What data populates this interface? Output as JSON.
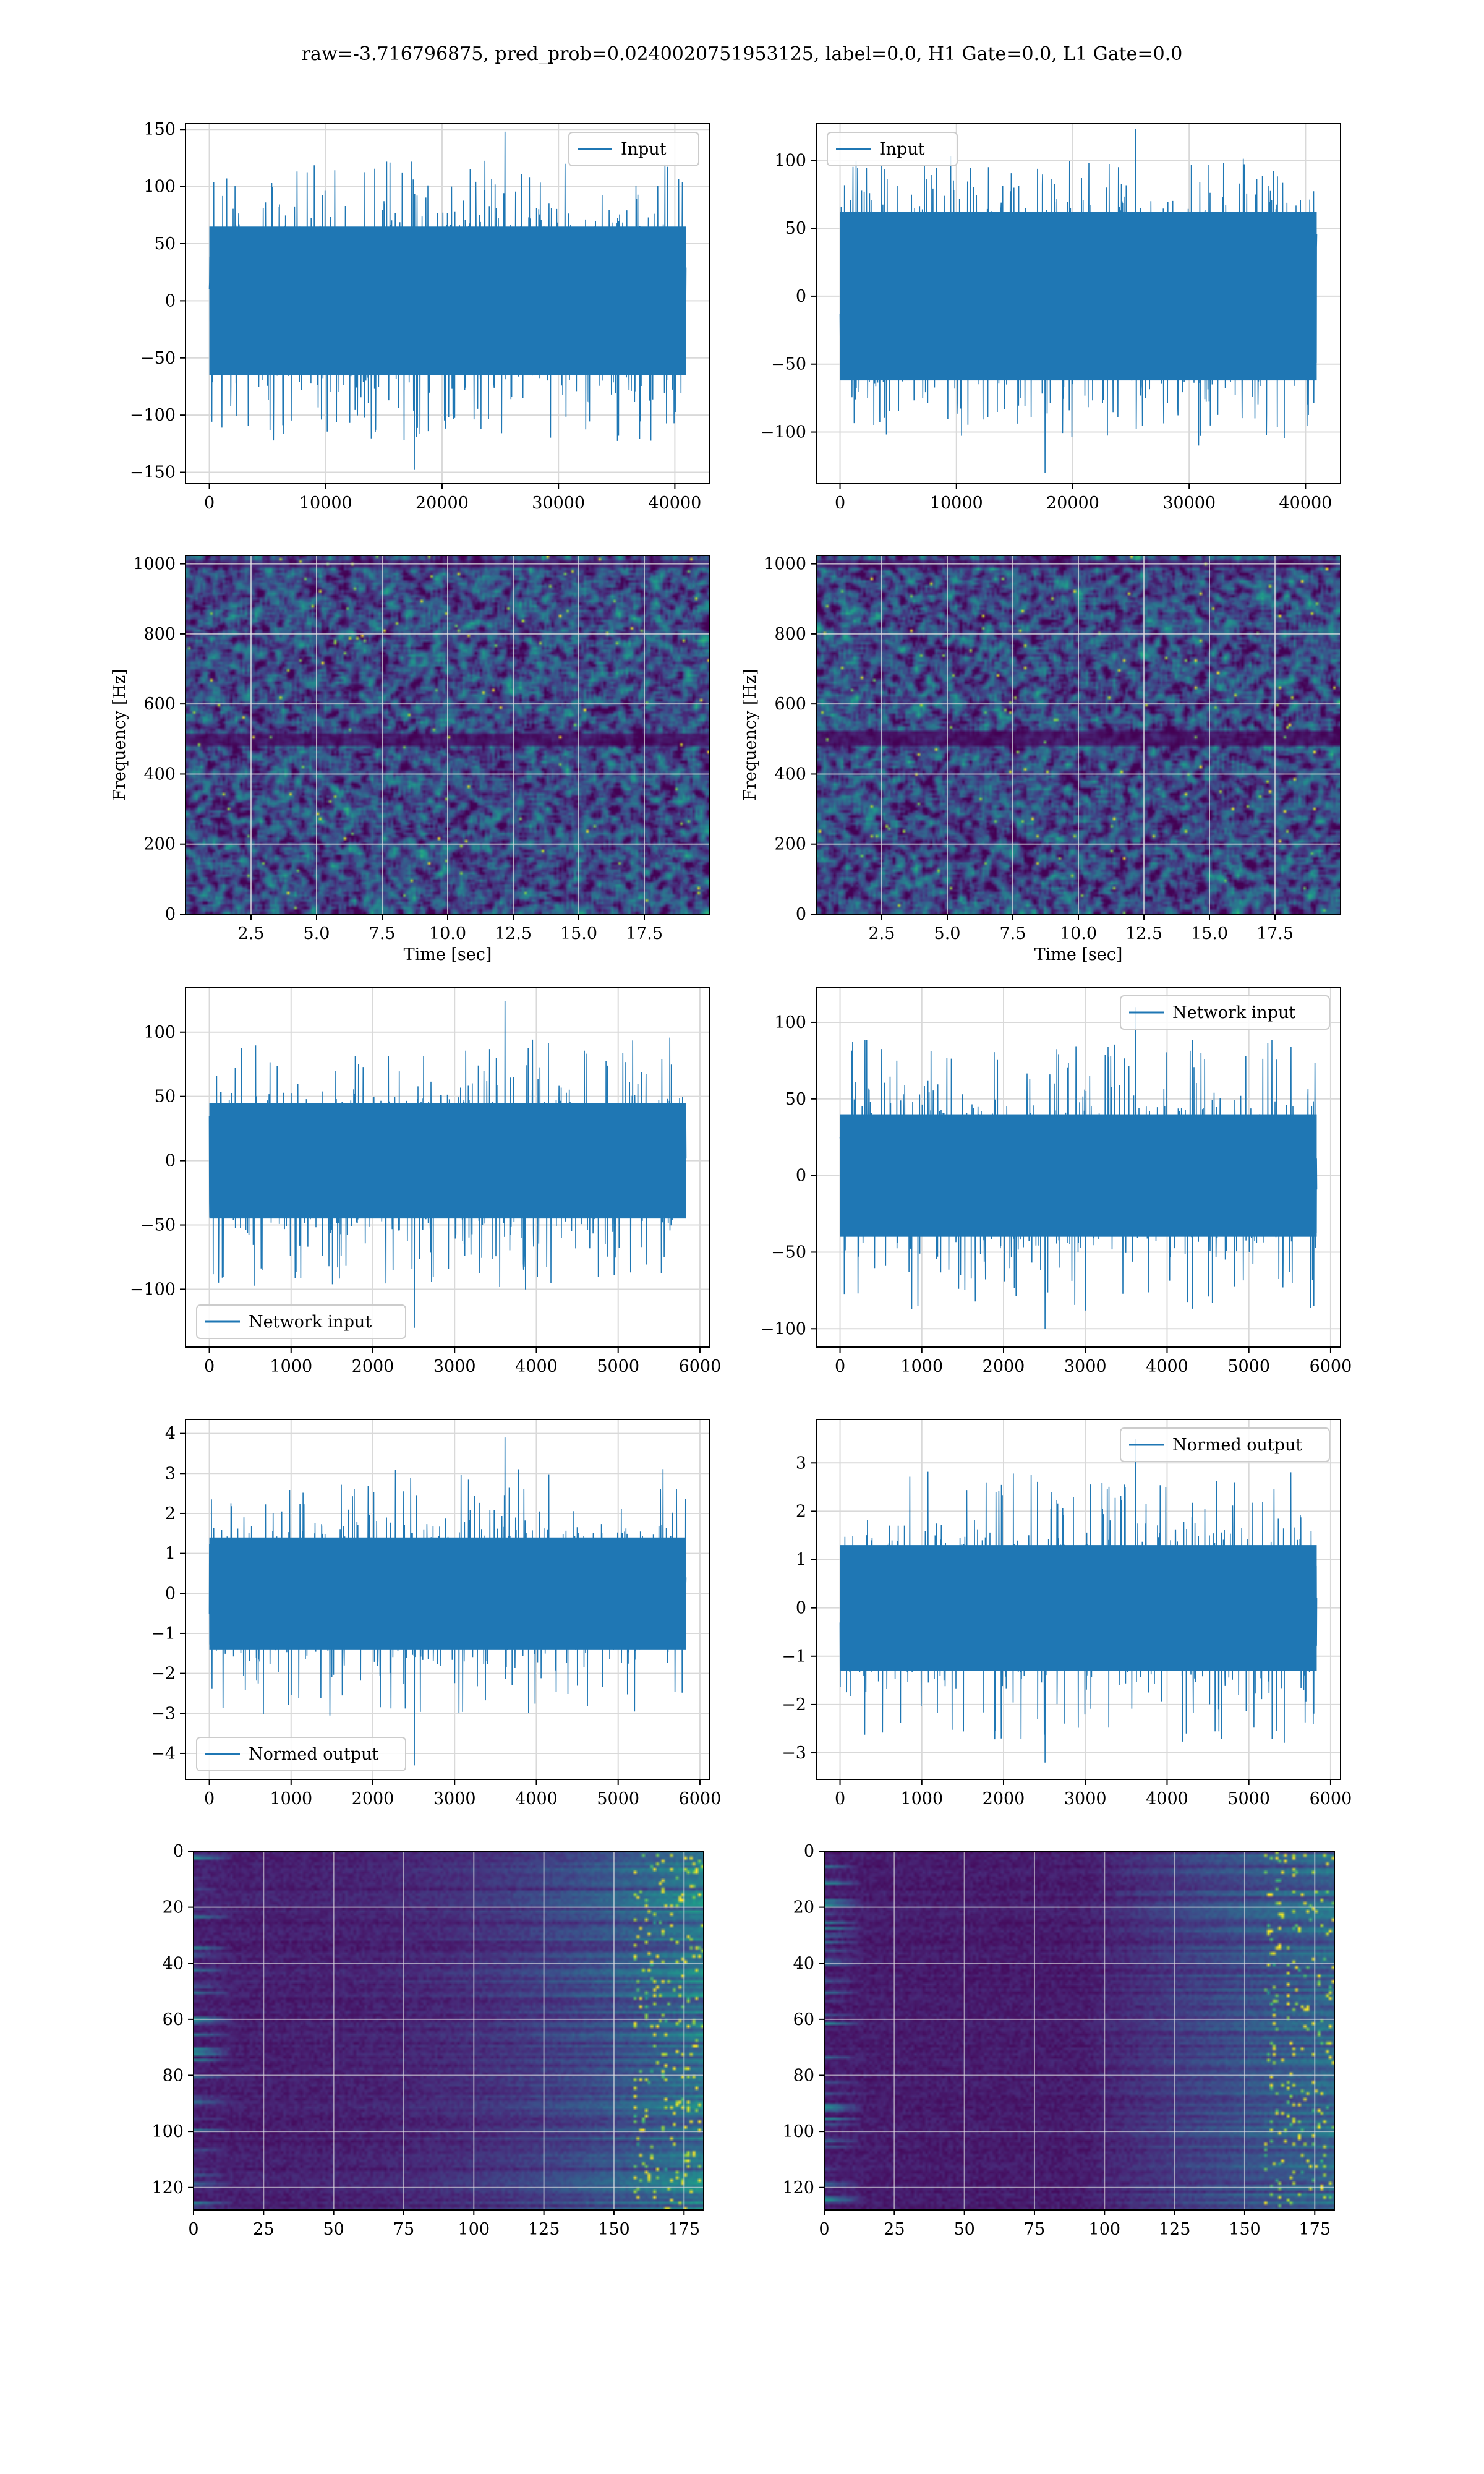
{
  "figure": {
    "title": "raw=-3.716796875, pred_prob=0.0240020751953125, label=0.0, H1 Gate=0.0, L1 Gate=0.0"
  },
  "colors": {
    "line": "#1f77b4",
    "grid": "#d9d9d9",
    "viridis_dark": "#440154",
    "viridis_mid": "#21908c",
    "viridis_bright": "#fde725"
  },
  "chart_data": [
    {
      "id": "input-h1",
      "type": "line",
      "legend": "Input",
      "legend_position": "upper right",
      "x_range": [
        0,
        40960
      ],
      "ylim": [
        -160,
        155
      ],
      "envelope": 65,
      "peak_up": 148,
      "peak_down": -148,
      "xticks": [
        0,
        10000,
        20000,
        30000,
        40000
      ],
      "yticks": [
        -150,
        -100,
        -50,
        0,
        50,
        100,
        150
      ],
      "grid": true
    },
    {
      "id": "input-l1",
      "type": "line",
      "legend": "Input",
      "legend_position": "upper left",
      "x_range": [
        0,
        40960
      ],
      "ylim": [
        -138,
        127
      ],
      "envelope": 62,
      "peak_up": 123,
      "peak_down": -130,
      "xticks": [
        0,
        10000,
        20000,
        30000,
        40000
      ],
      "yticks": [
        -100,
        -50,
        0,
        50,
        100
      ],
      "grid": true
    },
    {
      "id": "spec-h1",
      "type": "heatmap",
      "colormap": "viridis",
      "xlim": [
        0,
        20
      ],
      "ylim": [
        0,
        1024
      ],
      "xlabel": "Time [sec]",
      "ylabel": "Frequency [Hz]",
      "xticks": [
        2.5,
        5.0,
        7.5,
        10.0,
        12.5,
        15.0,
        17.5
      ],
      "yticks": [
        0,
        200,
        400,
        600,
        800,
        1000
      ],
      "dark_band_hz": [
        480,
        515
      ],
      "grid": true
    },
    {
      "id": "spec-l1",
      "type": "heatmap",
      "colormap": "viridis",
      "xlim": [
        0,
        20
      ],
      "ylim": [
        0,
        1024
      ],
      "xlabel": "Time [sec]",
      "ylabel": "Frequency [Hz]",
      "xticks": [
        2.5,
        5.0,
        7.5,
        10.0,
        12.5,
        15.0,
        17.5
      ],
      "yticks": [
        0,
        200,
        400,
        600,
        800,
        1000
      ],
      "dark_band_hz": [
        480,
        520
      ],
      "grid": true
    },
    {
      "id": "network-h1",
      "type": "line",
      "legend": "Network input",
      "legend_position": "lower left",
      "x_range": [
        0,
        5830
      ],
      "ylim": [
        -145,
        135
      ],
      "envelope": 45,
      "peak_up": 124,
      "peak_down": -130,
      "xticks": [
        0,
        1000,
        2000,
        3000,
        4000,
        5000,
        6000
      ],
      "yticks": [
        -100,
        -50,
        0,
        50,
        100
      ],
      "grid": true
    },
    {
      "id": "network-l1",
      "type": "line",
      "legend": "Network input",
      "legend_position": "upper right",
      "x_range": [
        0,
        5830
      ],
      "ylim": [
        -112,
        123
      ],
      "envelope": 40,
      "peak_up": 110,
      "peak_down": -100,
      "xticks": [
        0,
        1000,
        2000,
        3000,
        4000,
        5000,
        6000
      ],
      "yticks": [
        -100,
        -50,
        0,
        50,
        100
      ],
      "grid": true
    },
    {
      "id": "normed-h1",
      "type": "line",
      "legend": "Normed output",
      "legend_position": "lower left",
      "x_range": [
        0,
        5830
      ],
      "ylim": [
        -4.65,
        4.35
      ],
      "envelope": 1.4,
      "peak_up": 3.9,
      "peak_down": -4.3,
      "xticks": [
        0,
        1000,
        2000,
        3000,
        4000,
        5000,
        6000
      ],
      "yticks": [
        -4,
        -3,
        -2,
        -1,
        0,
        1,
        2,
        3,
        4
      ],
      "grid": true
    },
    {
      "id": "normed-l1",
      "type": "line",
      "legend": "Normed output",
      "legend_position": "upper right",
      "x_range": [
        0,
        5830
      ],
      "ylim": [
        -3.55,
        3.9
      ],
      "envelope": 1.3,
      "peak_up": 3.5,
      "peak_down": -3.2,
      "xticks": [
        0,
        1000,
        2000,
        3000,
        4000,
        5000,
        6000
      ],
      "yticks": [
        -3,
        -2,
        -1,
        0,
        1,
        2,
        3
      ],
      "grid": true
    },
    {
      "id": "features-h1",
      "type": "heatmap",
      "colormap": "viridis",
      "xlim": [
        0,
        182
      ],
      "ylim": [
        128,
        0
      ],
      "xticks": [
        0,
        25,
        50,
        75,
        100,
        125,
        150,
        175
      ],
      "yticks": [
        0,
        20,
        40,
        60,
        80,
        100,
        120
      ],
      "grid": true
    },
    {
      "id": "features-l1",
      "type": "heatmap",
      "colormap": "viridis",
      "xlim": [
        0,
        182
      ],
      "ylim": [
        128,
        0
      ],
      "xticks": [
        0,
        25,
        50,
        75,
        100,
        125,
        150,
        175
      ],
      "yticks": [
        0,
        20,
        40,
        60,
        80,
        100,
        120
      ],
      "grid": true
    }
  ]
}
